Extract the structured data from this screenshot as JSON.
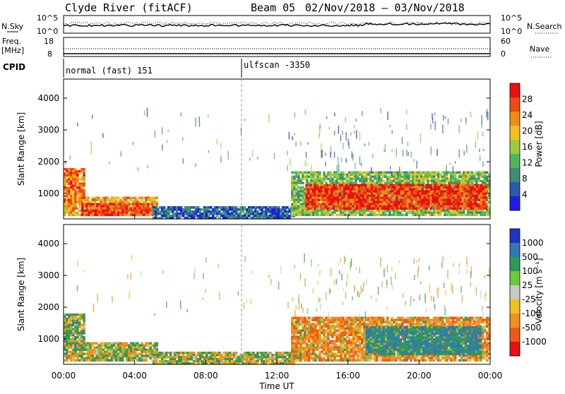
{
  "header": {
    "station": "Clyde River (fitACF)",
    "beam": "Beam 05",
    "date_range": "02/Nov/2018 – 03/Nov/2018"
  },
  "summary_panels": {
    "nsky_label": "N.Sky",
    "nsky_ticks": [
      "10^5",
      "10^0"
    ],
    "nsearch_label": "N.Search",
    "nsearch_ticks": [
      "10^5",
      "10^0"
    ],
    "freq_label_line1": "Freq.",
    "freq_label_line2": "[MHz]",
    "freq_ticks": [
      "18",
      "8"
    ],
    "nave_label": "Nave",
    "nave_ticks": [
      "60",
      "0"
    ],
    "cpid_label": "CPID",
    "cpid_modes": [
      {
        "name": "normal (fast) 151",
        "start_hour": 0
      },
      {
        "name": "ulfscan -3350",
        "start_hour": 10
      }
    ]
  },
  "chart_data": [
    {
      "type": "heatmap",
      "name": "power",
      "ylabel": "Slant Range [km]",
      "xlabel": "",
      "ylim": [
        200,
        4600
      ],
      "xlim_hours": [
        0,
        24
      ],
      "yticks": [
        1000,
        2000,
        3000,
        4000
      ],
      "colorbar": {
        "label": "Power [dB]",
        "range": [
          0,
          32
        ],
        "ticks": [
          4,
          8,
          12,
          16,
          20,
          24,
          28
        ],
        "colors": [
          "#1e1ee6",
          "#2a5aa8",
          "#3c8c78",
          "#4fb65a",
          "#9ccc3c",
          "#f0c020",
          "#f08a18",
          "#f04a14",
          "#e81010"
        ]
      },
      "regions": [
        {
          "x0": 0.0,
          "x1": 5.3,
          "r0": 300,
          "r1": 900,
          "value": 22
        },
        {
          "x0": 0.0,
          "x1": 1.2,
          "r0": 700,
          "r1": 1800,
          "value": 24
        },
        {
          "x0": 1.0,
          "x1": 4.8,
          "r0": 300,
          "r1": 700,
          "value": 28
        },
        {
          "x0": 5.0,
          "x1": 13.0,
          "r0": 200,
          "r1": 600,
          "value": 6
        },
        {
          "x0": 12.8,
          "x1": 24.0,
          "r0": 300,
          "r1": 1700,
          "value": 14
        },
        {
          "x0": 13.6,
          "x1": 23.8,
          "r0": 500,
          "r1": 1300,
          "value": 28
        }
      ]
    },
    {
      "type": "heatmap",
      "name": "velocity",
      "ylabel": "Slant Range [km]",
      "xlabel": "Time UT",
      "ylim": [
        200,
        4600
      ],
      "xlim_hours": [
        0,
        24
      ],
      "yticks": [
        1000,
        2000,
        3000,
        4000
      ],
      "xticks": [
        "00:00",
        "04:00",
        "08:00",
        "12:00",
        "16:00",
        "20:00",
        "00:00"
      ],
      "colorbar": {
        "label": "Velocity [m s⁻¹]",
        "ticks": [
          1000,
          500,
          100,
          25,
          -25,
          -100,
          -500,
          -1000
        ],
        "colors": [
          "#1e32c8",
          "#3278b4",
          "#2e9a5a",
          "#6ec83c",
          "#c8c8c8",
          "#f0c020",
          "#f09020",
          "#f05a14",
          "#e81010"
        ]
      },
      "regions": [
        {
          "x0": 0.0,
          "x1": 5.3,
          "r0": 300,
          "r1": 900,
          "value": 0
        },
        {
          "x0": 0.0,
          "x1": 1.2,
          "r0": 700,
          "r1": 1800,
          "value": 100
        },
        {
          "x0": 5.0,
          "x1": 13.0,
          "r0": 200,
          "r1": 600,
          "value": -25
        },
        {
          "x0": 12.8,
          "x1": 24.0,
          "r0": 300,
          "r1": 1700,
          "value": -300
        },
        {
          "x0": 17.0,
          "x1": 23.5,
          "r0": 500,
          "r1": 1400,
          "value": 500
        }
      ]
    }
  ]
}
